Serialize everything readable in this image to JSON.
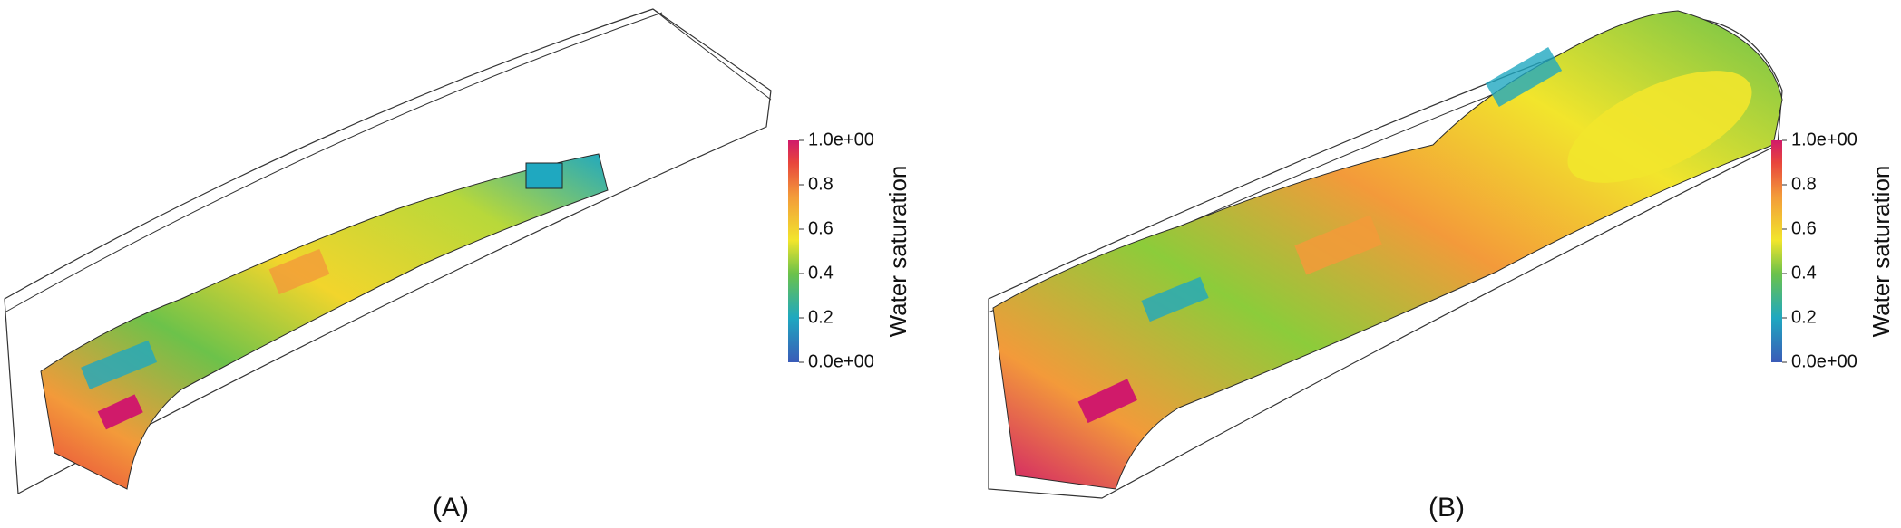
{
  "panels": [
    {
      "label": "(A)",
      "colorbar": {
        "title": "Water saturation",
        "lim": [
          0,
          1
        ],
        "ticks": [
          {
            "value": 0,
            "label": "0.0e+00"
          },
          0.2,
          0.4,
          0.6,
          0.8,
          {
            "value": 1,
            "label": "1.0e+00"
          }
        ]
      }
    },
    {
      "label": "(B)",
      "colorbar": {
        "title": "Water saturation",
        "lim": [
          0,
          1
        ],
        "ticks": [
          {
            "value": 0,
            "label": "0.0e+00"
          },
          0.2,
          0.4,
          0.6,
          0.8,
          {
            "value": 1,
            "label": "1.0e+00"
          }
        ]
      }
    }
  ]
}
